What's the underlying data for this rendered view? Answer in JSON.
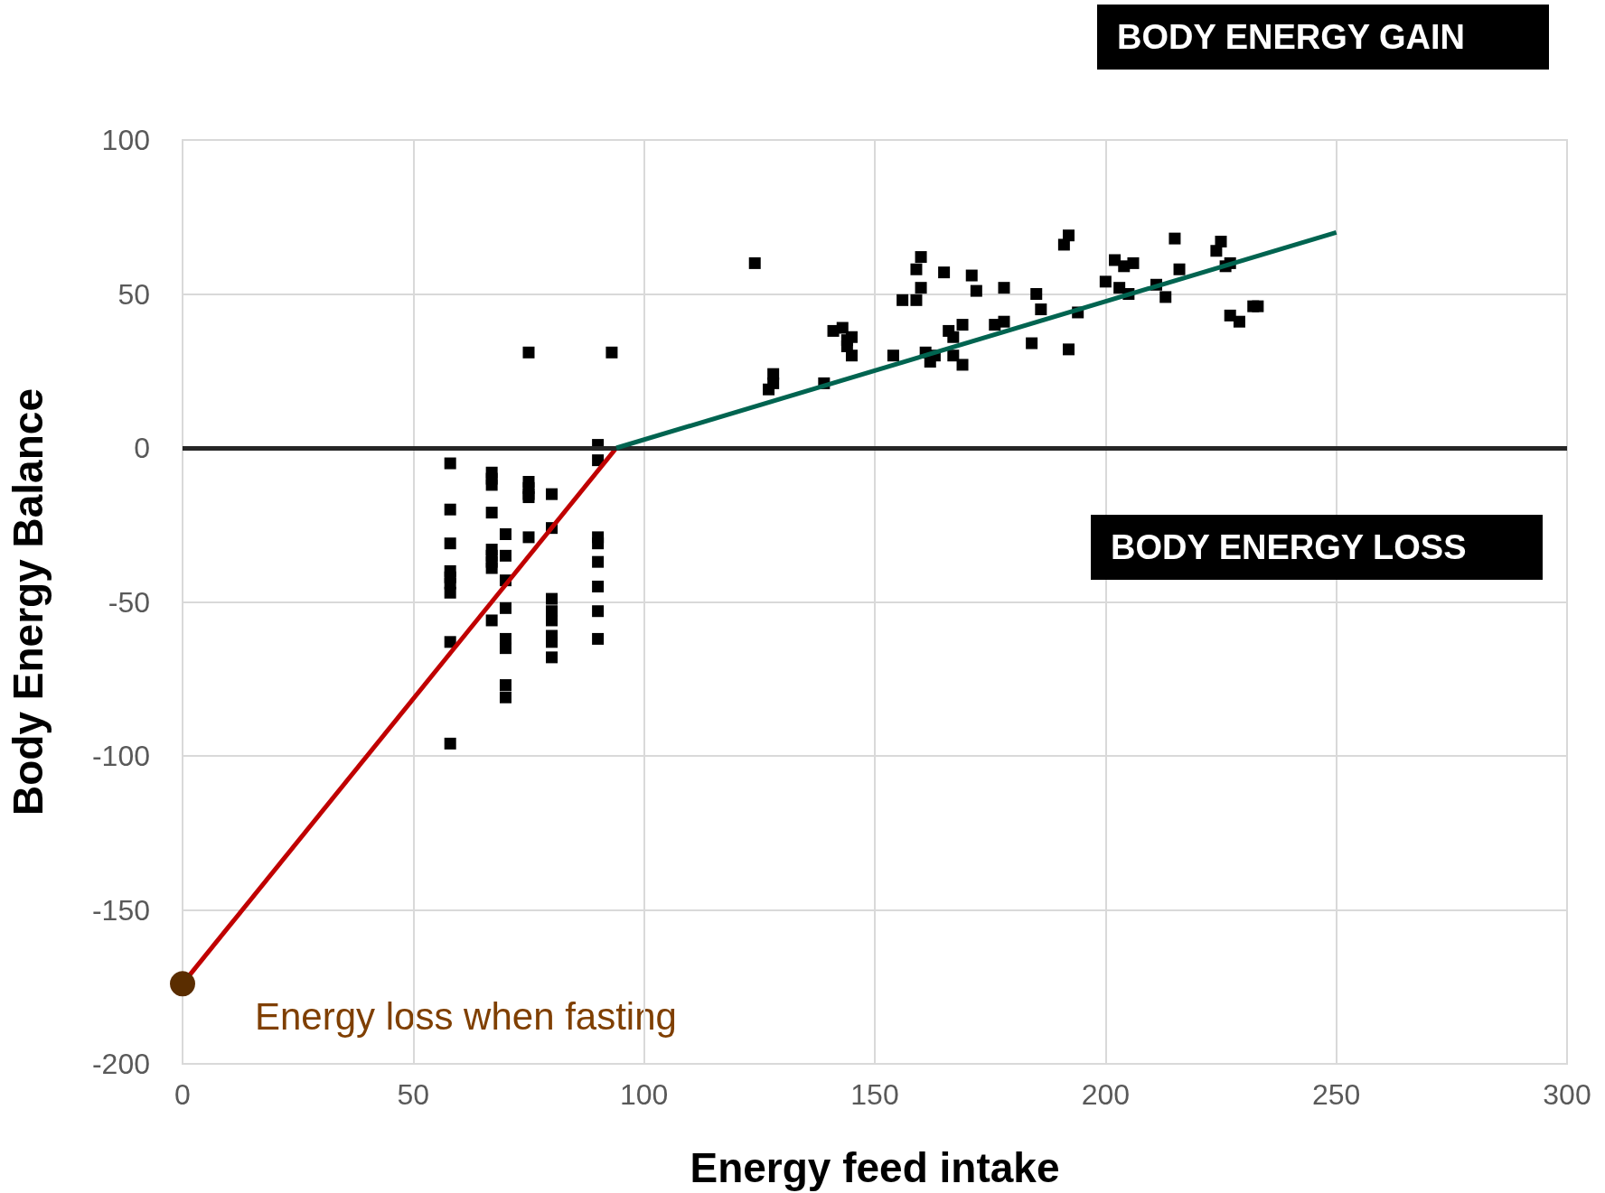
{
  "chart_data": {
    "type": "scatter",
    "xlabel": "Energy feed intake",
    "ylabel": "Body Energy Balance",
    "xlim": [
      0,
      300
    ],
    "xticks": [
      0,
      50,
      100,
      150,
      200,
      250,
      300
    ],
    "ylim": [
      -200,
      100
    ],
    "yticks": [
      -200,
      -150,
      -100,
      -50,
      0,
      50,
      100
    ],
    "grid": true,
    "marker": "square",
    "series": [
      {
        "color": "#000000",
        "x": [
          58,
          58,
          58,
          58,
          58,
          58,
          58,
          58,
          58,
          67,
          67,
          67,
          67,
          67,
          67,
          67,
          67,
          67,
          70,
          70,
          70,
          70,
          70,
          70,
          70,
          70,
          75,
          75,
          75,
          75,
          75,
          75,
          80,
          80,
          80,
          80,
          80,
          80,
          80,
          80,
          90,
          90,
          90,
          90,
          90,
          90,
          90,
          90,
          93,
          124,
          127,
          128,
          128,
          139,
          141,
          143,
          144,
          144,
          145,
          145,
          154,
          156,
          159,
          159,
          160,
          160,
          161,
          162,
          163,
          165,
          166,
          167,
          167,
          169,
          169,
          171,
          172,
          176,
          178,
          178,
          184,
          185,
          186,
          191,
          192,
          192,
          194,
          200,
          202,
          203,
          204,
          205,
          206,
          211,
          213,
          215,
          216,
          224,
          225,
          226,
          227,
          227,
          229,
          232,
          233
        ],
        "values": [
          -5,
          -20,
          -31,
          -40,
          -42,
          -44,
          -47,
          -63,
          -96,
          -8,
          -10,
          -12,
          -21,
          -33,
          -35,
          -37,
          -39,
          -56,
          -28,
          -35,
          -43,
          -52,
          -62,
          -65,
          -77,
          -81,
          -11,
          -13,
          -15,
          -16,
          -29,
          31,
          -15,
          -26,
          -49,
          -53,
          -56,
          -61,
          -63,
          -68,
          1,
          -4,
          -29,
          -31,
          -37,
          -45,
          -53,
          -62,
          31,
          60,
          19,
          21,
          24,
          21,
          38,
          39,
          35,
          33,
          36,
          30,
          30,
          48,
          58,
          48,
          62,
          52,
          31,
          28,
          30,
          57,
          38,
          36,
          30,
          27,
          40,
          56,
          51,
          40,
          52,
          41,
          34,
          50,
          45,
          66,
          32,
          69,
          44,
          54,
          61,
          52,
          59,
          50,
          60,
          53,
          49,
          68,
          58,
          64,
          67,
          59,
          60,
          43,
          41,
          46,
          46
        ]
      },
      {
        "type": "line",
        "color": "#c00000",
        "marker": "none",
        "x": [
          0,
          94
        ],
        "values": [
          -174,
          0
        ]
      },
      {
        "type": "line",
        "color": "#006450",
        "marker": "none",
        "x": [
          94,
          250
        ],
        "values": [
          0,
          70
        ]
      },
      {
        "type": "scatter",
        "color": "#5a2d00",
        "marker": "circle",
        "x": [
          0
        ],
        "values": [
          -174
        ]
      }
    ],
    "ref_lines": [
      {
        "axis": "y",
        "value": 0,
        "color": "#262626"
      }
    ],
    "annotations": [
      "BODY ENERGY GAIN",
      "BODY ENERGY LOSS",
      {
        "text": "Energy loss when fasting",
        "x": 0,
        "y": -174
      }
    ]
  }
}
